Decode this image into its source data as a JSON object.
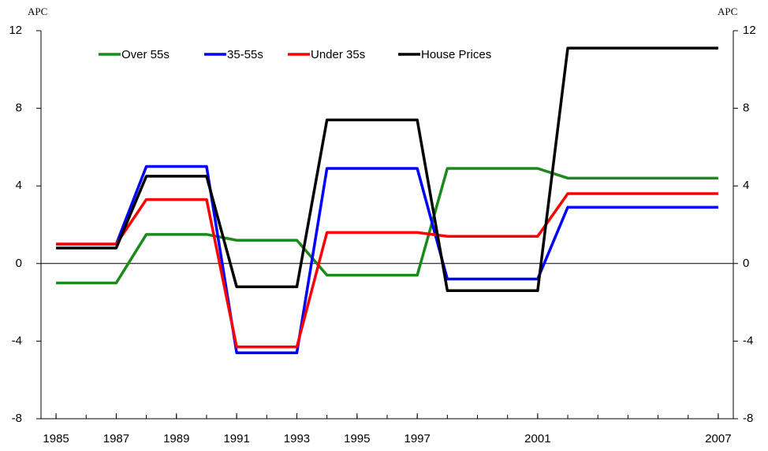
{
  "chart_data": {
    "type": "line",
    "ylabel": "APC",
    "y2label": "APC",
    "x": [
      1985,
      1986,
      1987,
      1988,
      1989,
      1990,
      1991,
      1992,
      1993,
      1994,
      1995,
      1996,
      1997,
      1998,
      1999,
      2000,
      2001,
      2002,
      2003,
      2004,
      2005,
      2006,
      2007
    ],
    "xlim": [
      1984.5,
      2007.5
    ],
    "xticks": [
      1985,
      1987,
      1989,
      1991,
      1993,
      1995,
      1997,
      2001,
      2007
    ],
    "ylim": [
      -8,
      12
    ],
    "yticks": [
      -8,
      -4,
      0,
      4,
      8,
      12
    ],
    "y2lim": [
      -8,
      12
    ],
    "y2ticks": [
      -8,
      -4,
      0,
      4,
      8,
      12
    ],
    "series": [
      {
        "name": "Over 55s",
        "color": "#1a8a1a",
        "values": [
          -1.0,
          -1.0,
          -1.0,
          1.5,
          1.5,
          1.5,
          1.2,
          1.2,
          1.2,
          -0.6,
          -0.6,
          -0.6,
          -0.6,
          4.9,
          4.9,
          4.9,
          4.9,
          4.4,
          4.4,
          4.4,
          4.4,
          4.4,
          4.4
        ]
      },
      {
        "name": "35-55s",
        "color": "#0000ff",
        "values": [
          1.0,
          1.0,
          1.0,
          5.0,
          5.0,
          5.0,
          -4.6,
          -4.6,
          -4.6,
          4.9,
          4.9,
          4.9,
          4.9,
          -0.8,
          -0.8,
          -0.8,
          -0.8,
          2.9,
          2.9,
          2.9,
          2.9,
          2.9,
          2.9
        ]
      },
      {
        "name": "Under 35s",
        "color": "#ff0000",
        "values": [
          1.0,
          1.0,
          1.0,
          3.3,
          3.3,
          3.3,
          -4.3,
          -4.3,
          -4.3,
          1.6,
          1.6,
          1.6,
          1.6,
          1.4,
          1.4,
          1.4,
          1.4,
          3.6,
          3.6,
          3.6,
          3.6,
          3.6,
          3.6
        ]
      },
      {
        "name": "House Prices",
        "color": "#000000",
        "values": [
          0.8,
          0.8,
          0.8,
          4.5,
          4.5,
          4.5,
          -1.2,
          -1.2,
          -1.2,
          7.4,
          7.4,
          7.4,
          7.4,
          -1.4,
          -1.4,
          -1.4,
          -1.4,
          11.1,
          11.1,
          11.1,
          11.1,
          11.1,
          11.1
        ]
      }
    ]
  }
}
